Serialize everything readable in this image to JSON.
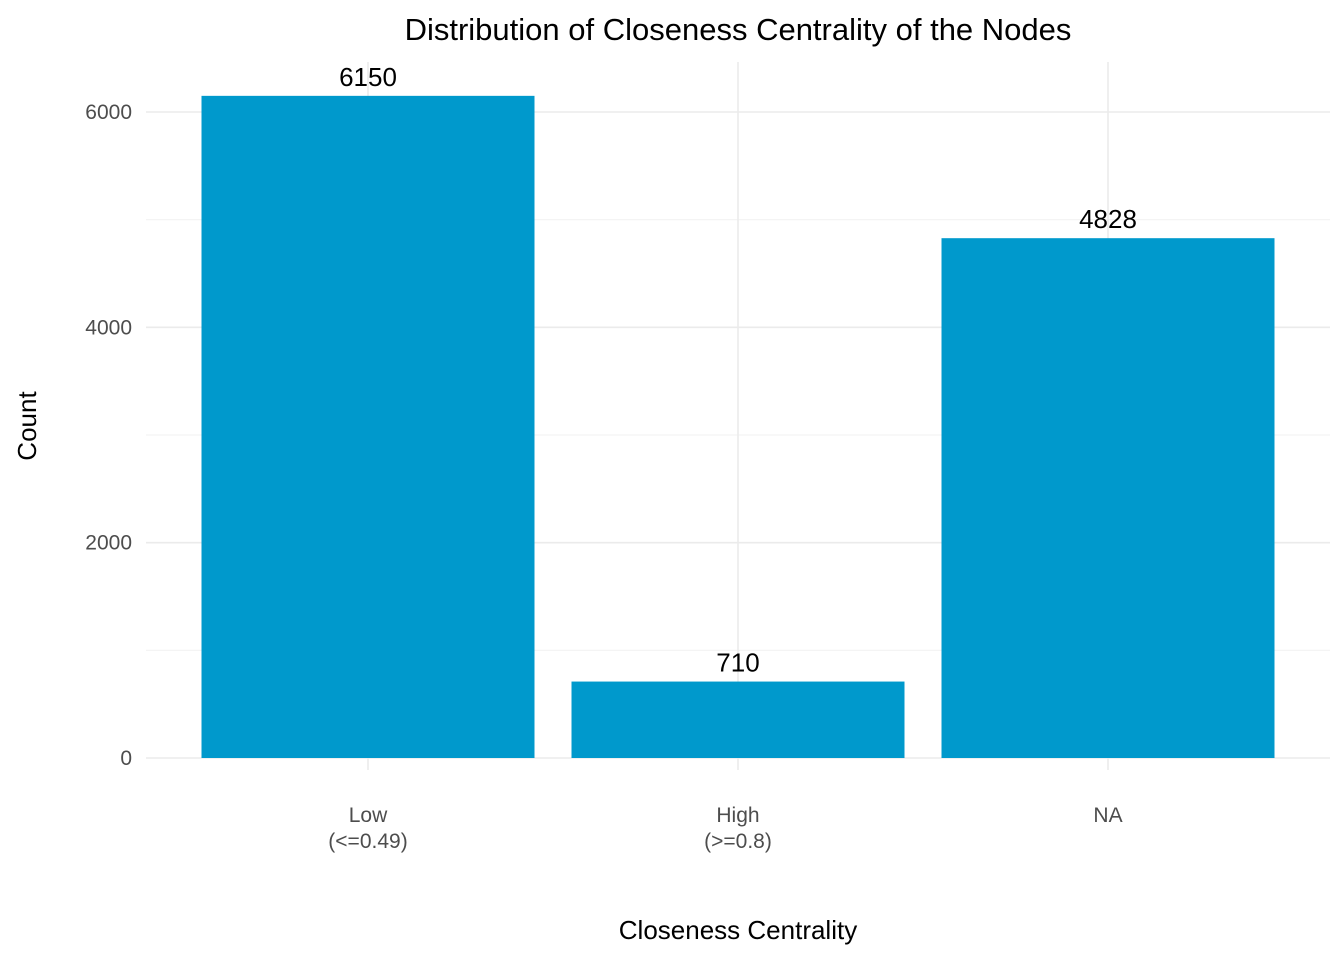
{
  "chart_data": {
    "type": "bar",
    "title": "Distribution of Closeness Centrality of the Nodes",
    "xlabel": "Closeness Centrality",
    "ylabel": "Count",
    "categories": [
      [
        "Low",
        "(<=0.49)"
      ],
      [
        "High",
        "(>=0.8)"
      ],
      [
        "NA"
      ]
    ],
    "values": [
      6150,
      710,
      4828
    ],
    "data_labels": [
      "6150",
      "710",
      "4828"
    ],
    "y_ticks": [
      0,
      2000,
      4000,
      6000
    ],
    "ylim": [
      0,
      6150
    ],
    "grid": true,
    "bar_color": "#0099CC",
    "legend": "none"
  }
}
